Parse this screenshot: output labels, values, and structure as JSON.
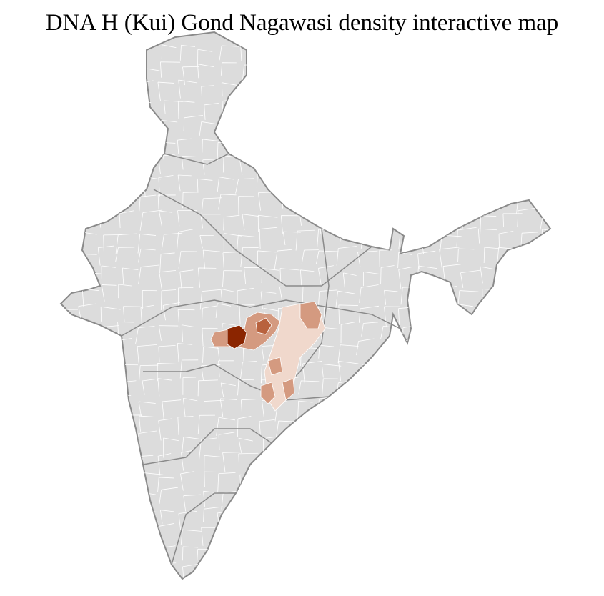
{
  "title": "DNA H (Kui) Gond Nagawasi density interactive map",
  "colors": {
    "base_fill": "#dcdcdc",
    "district_border": "#ffffff",
    "state_border": "#8a8a8a",
    "density_highest": "#8b2500",
    "density_high": "#b8623e",
    "density_medium": "#d49a80",
    "density_low": "#f0d8cc"
  }
}
